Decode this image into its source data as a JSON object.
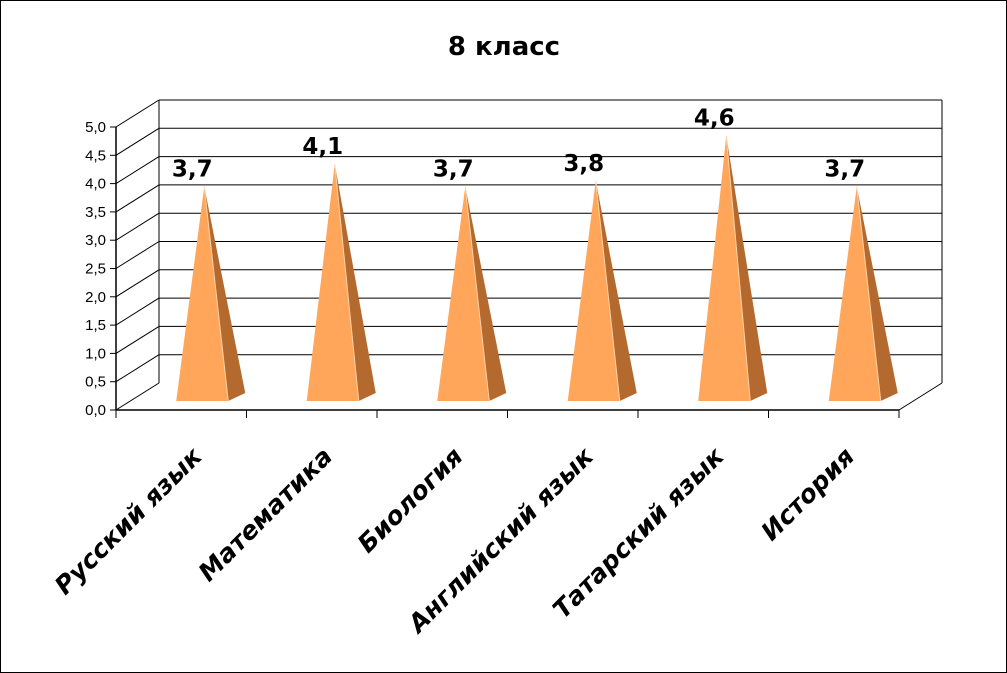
{
  "chart_data": {
    "type": "bar",
    "style": "3d-pyramid",
    "title": "8 класс",
    "xlabel": "",
    "ylabel": "",
    "categories": [
      "Русский язык",
      "Математика",
      "Биология",
      "Английский язык",
      "Татарский язык",
      "История"
    ],
    "series": [
      {
        "values": [
          3.7,
          4.1,
          3.7,
          3.8,
          4.6,
          3.7
        ]
      }
    ],
    "data_labels": [
      "3,7",
      "4,1",
      "3,7",
      "3,8",
      "4,6",
      "3,7"
    ],
    "ylim": [
      0,
      5
    ],
    "ytick_labels": [
      "0,0",
      "0,5",
      "1,0",
      "1,5",
      "2,0",
      "2,5",
      "3,0",
      "3,5",
      "4,0",
      "4,5",
      "5,0"
    ],
    "grid": true,
    "legend": "none",
    "colors": {
      "pyramid_front": "#ffa65a",
      "pyramid_side": "#b46a2e",
      "pyramid_edge": "#ffd2a8",
      "gridline": "#000000"
    }
  }
}
